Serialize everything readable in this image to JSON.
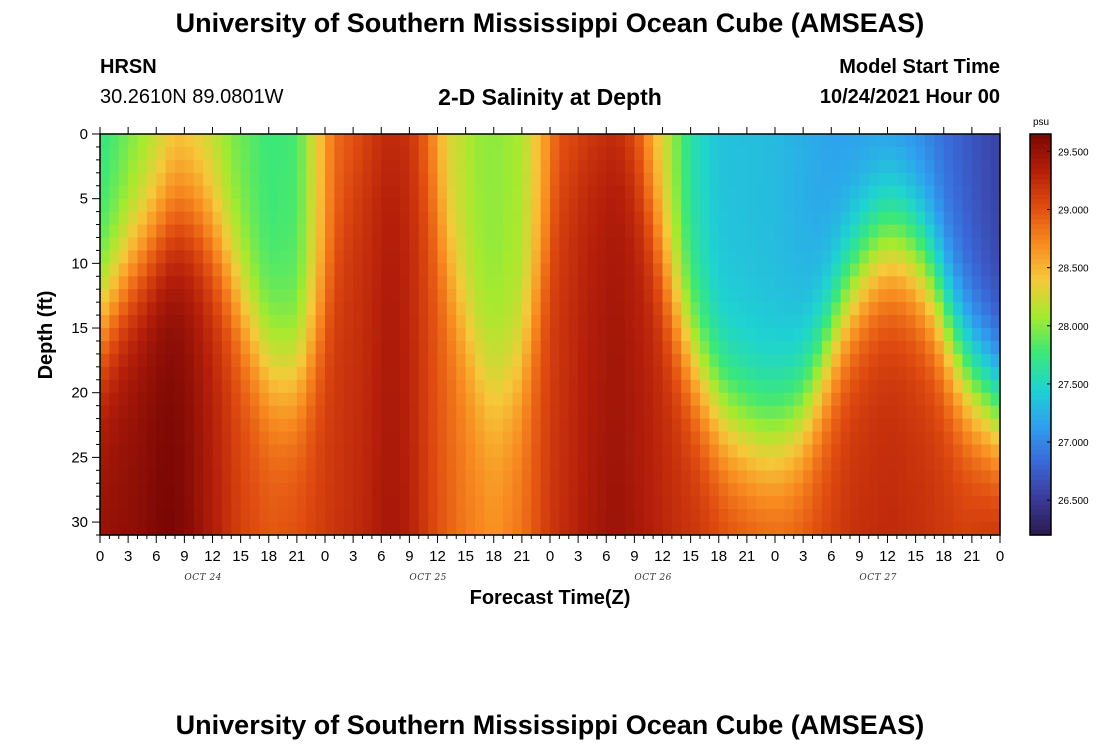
{
  "page": {
    "title": "University of Southern Mississippi Ocean Cube (AMSEAS)",
    "station_name": "HRSN",
    "station_coords": "30.2610N  89.0801W",
    "subtitle": "2-D Salinity at Depth",
    "model_start_label": "Model Start Time",
    "model_start_value": "10/24/2021 Hour 00",
    "footer_title": "University of Southern Mississippi Ocean Cube (AMSEAS)"
  },
  "colors": {
    "background": "#ffffff",
    "axis": "#000000",
    "colormap": [
      "#2a1a4e",
      "#3b3a9a",
      "#3a68d8",
      "#2fa0f0",
      "#1ed4d0",
      "#3be878",
      "#a6ea2e",
      "#f6c93a",
      "#f88a20",
      "#e04c10",
      "#b41e0a",
      "#7a0704"
    ]
  },
  "chart_data": {
    "type": "heatmap",
    "title": "2-D Salinity at Depth",
    "xlabel": "Forecast Time(Z)",
    "ylabel": "Depth (ft)",
    "x_range_hours": [
      0,
      96
    ],
    "x_step_hours": 1,
    "y_range_ft": [
      0,
      31
    ],
    "y_step_ft": 1,
    "x_tick_labels": [
      "0",
      "3",
      "6",
      "9",
      "12",
      "15",
      "18",
      "21",
      "0",
      "3",
      "6",
      "9",
      "12",
      "15",
      "18",
      "21",
      "0",
      "3",
      "6",
      "9",
      "12",
      "15",
      "18",
      "21",
      "0",
      "3",
      "6",
      "9",
      "12",
      "15",
      "18",
      "21",
      "0"
    ],
    "x_tick_hours": [
      0,
      3,
      6,
      9,
      12,
      15,
      18,
      21,
      24,
      27,
      30,
      33,
      36,
      39,
      42,
      45,
      48,
      51,
      54,
      57,
      60,
      63,
      66,
      69,
      72,
      75,
      78,
      81,
      84,
      87,
      90,
      93,
      96
    ],
    "date_labels": [
      {
        "label": "OCT 24",
        "center_hour": 11
      },
      {
        "label": "OCT 25",
        "center_hour": 35
      },
      {
        "label": "OCT 26",
        "center_hour": 59
      },
      {
        "label": "OCT 27",
        "center_hour": 83
      }
    ],
    "y_ticks": [
      0,
      5,
      10,
      15,
      20,
      25,
      30
    ],
    "y_tick_labels": [
      "0",
      "5",
      "10",
      "15",
      "20",
      "25",
      "30"
    ],
    "colorbar": {
      "unit": "psu",
      "min": 26.2,
      "max": 29.65,
      "ticks": [
        26.5,
        27.0,
        27.5,
        28.0,
        28.5,
        29.0,
        29.5
      ],
      "tick_labels": [
        "26.500",
        "27.000",
        "27.500",
        "28.000",
        "28.500",
        "29.000",
        "29.500"
      ]
    },
    "surface_salinity_knots": [
      [
        0,
        27.7
      ],
      [
        3,
        27.9
      ],
      [
        6,
        28.1
      ],
      [
        8,
        28.3
      ],
      [
        11,
        28.2
      ],
      [
        14,
        27.95
      ],
      [
        18,
        27.75
      ],
      [
        21,
        27.8
      ],
      [
        23,
        28.3
      ],
      [
        25,
        28.85
      ],
      [
        28,
        29.0
      ],
      [
        30,
        29.15
      ],
      [
        33,
        29.15
      ],
      [
        35,
        28.8
      ],
      [
        37,
        28.3
      ],
      [
        40,
        28.05
      ],
      [
        42,
        28.0
      ],
      [
        45,
        28.1
      ],
      [
        47,
        28.5
      ],
      [
        49,
        28.95
      ],
      [
        52,
        29.0
      ],
      [
        55,
        29.1
      ],
      [
        57,
        28.9
      ],
      [
        59,
        28.45
      ],
      [
        61,
        28.05
      ],
      [
        63,
        27.6
      ],
      [
        66,
        27.35
      ],
      [
        72,
        27.3
      ],
      [
        78,
        27.15
      ],
      [
        84,
        27.05
      ],
      [
        88,
        26.95
      ],
      [
        92,
        26.75
      ],
      [
        96,
        26.55
      ]
    ],
    "fresh_layer_depth_knots": [
      [
        0,
        15
      ],
      [
        3,
        11
      ],
      [
        6,
        8
      ],
      [
        8,
        6.5
      ],
      [
        10,
        6.5
      ],
      [
        12,
        8
      ],
      [
        14,
        11
      ],
      [
        16,
        15
      ],
      [
        18,
        18
      ],
      [
        20,
        19
      ],
      [
        22,
        18
      ],
      [
        24,
        14
      ],
      [
        26,
        6
      ],
      [
        28,
        2
      ],
      [
        30,
        0
      ],
      [
        33,
        0
      ],
      [
        35,
        4
      ],
      [
        37,
        10
      ],
      [
        39,
        15
      ],
      [
        41,
        19
      ],
      [
        43,
        20
      ],
      [
        45,
        18
      ],
      [
        47,
        12
      ],
      [
        49,
        4
      ],
      [
        52,
        0
      ],
      [
        55,
        0
      ],
      [
        57,
        2
      ],
      [
        59,
        7
      ],
      [
        61,
        13
      ],
      [
        63,
        17
      ],
      [
        65,
        20
      ],
      [
        67,
        22
      ],
      [
        69,
        23
      ],
      [
        71,
        23.5
      ],
      [
        73,
        23
      ],
      [
        75,
        21.5
      ],
      [
        77,
        18
      ],
      [
        79,
        14
      ],
      [
        81,
        11
      ],
      [
        83,
        9
      ],
      [
        85,
        8.5
      ],
      [
        87,
        9.5
      ],
      [
        89,
        12
      ],
      [
        91,
        16
      ],
      [
        93,
        19
      ],
      [
        96,
        21.5
      ]
    ],
    "deep_salinity_knots": [
      [
        0,
        29.45
      ],
      [
        4,
        29.5
      ],
      [
        7,
        29.6
      ],
      [
        9,
        29.55
      ],
      [
        12,
        29.3
      ],
      [
        15,
        29.05
      ],
      [
        18,
        28.95
      ],
      [
        21,
        29.0
      ],
      [
        24,
        29.1
      ],
      [
        28,
        29.2
      ],
      [
        31,
        29.35
      ],
      [
        33,
        29.25
      ],
      [
        36,
        28.95
      ],
      [
        39,
        28.75
      ],
      [
        42,
        28.65
      ],
      [
        45,
        28.8
      ],
      [
        48,
        29.1
      ],
      [
        52,
        29.3
      ],
      [
        55,
        29.4
      ],
      [
        58,
        29.3
      ],
      [
        61,
        29.2
      ],
      [
        64,
        29.15
      ],
      [
        67,
        29.05
      ],
      [
        70,
        29.0
      ],
      [
        73,
        28.95
      ],
      [
        76,
        29.0
      ],
      [
        80,
        29.15
      ],
      [
        84,
        29.2
      ],
      [
        88,
        29.15
      ],
      [
        92,
        29.1
      ],
      [
        96,
        29.25
      ]
    ]
  }
}
